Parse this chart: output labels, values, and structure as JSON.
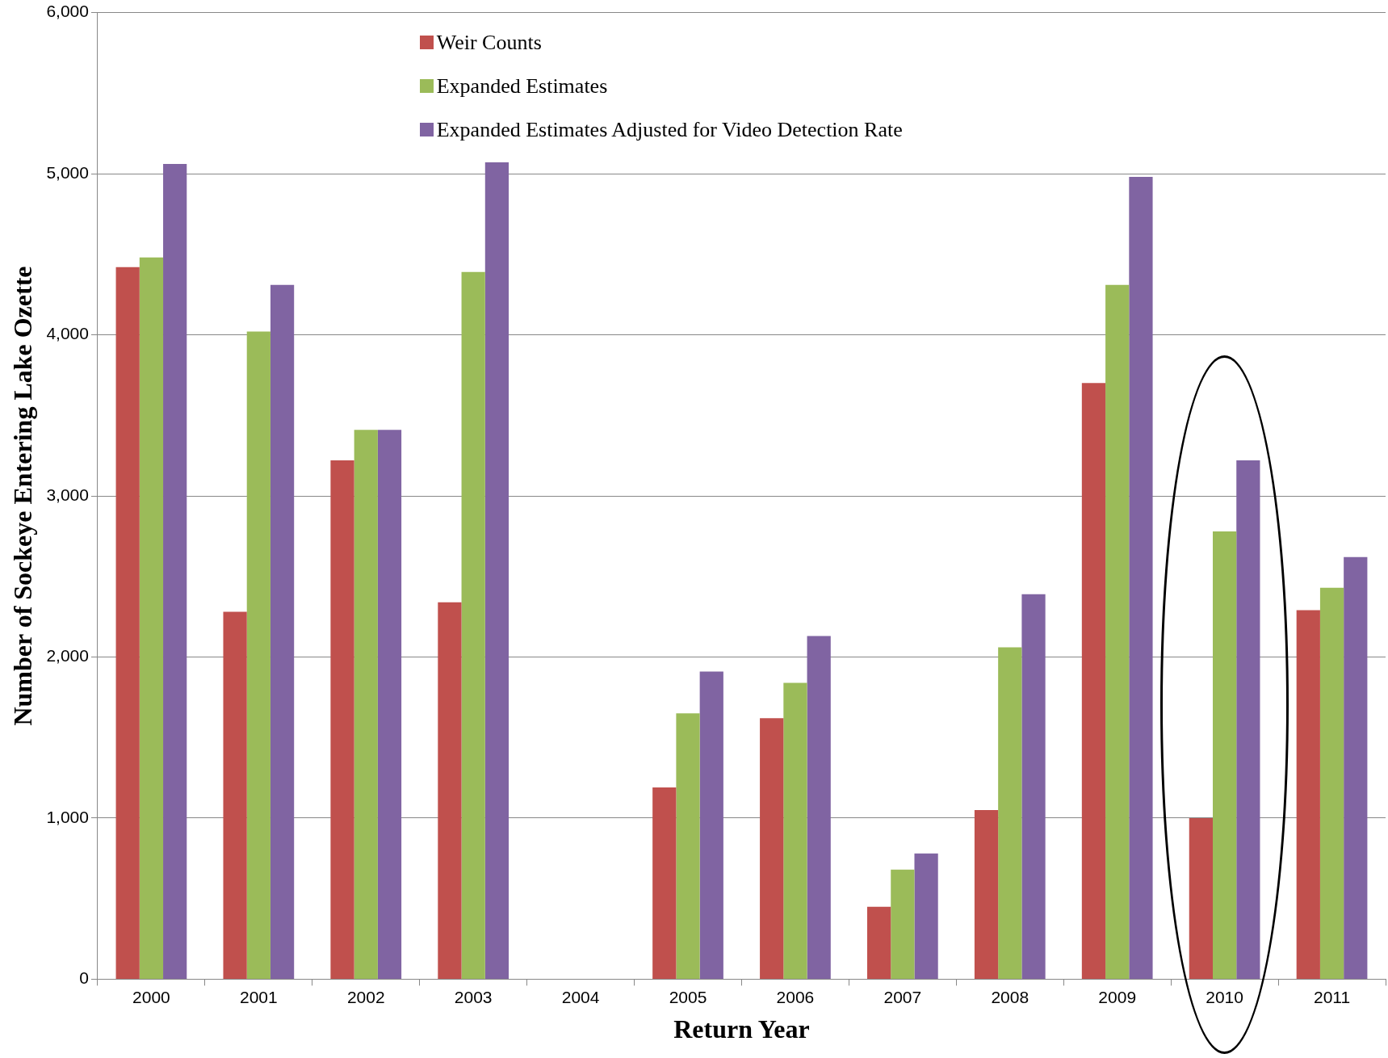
{
  "chart_data": {
    "type": "bar",
    "xlabel": "Return Year",
    "ylabel": "Number of Sockeye Entering Lake Ozette",
    "categories": [
      "2000",
      "2001",
      "2002",
      "2003",
      "2004",
      "2005",
      "2006",
      "2007",
      "2008",
      "2009",
      "2010",
      "2011"
    ],
    "series": [
      {
        "name": "Weir Counts",
        "color": "#c0504d",
        "values": [
          4420,
          2280,
          3220,
          2340,
          null,
          1190,
          1620,
          450,
          1050,
          3700,
          1000,
          2290
        ]
      },
      {
        "name": "Expanded Estimates",
        "color": "#9bbb59",
        "values": [
          4480,
          4020,
          3410,
          4390,
          null,
          1650,
          1840,
          680,
          2060,
          4310,
          2780,
          2430
        ]
      },
      {
        "name": "Expanded Estimates Adjusted for Video Detection Rate",
        "color": "#8064a2",
        "values": [
          5060,
          4310,
          3410,
          5070,
          null,
          1910,
          2130,
          780,
          2390,
          4980,
          3220,
          2620
        ]
      }
    ],
    "ylim": [
      0,
      6000
    ],
    "yticks": [
      {
        "value": 0,
        "label": "0"
      },
      {
        "value": 1000,
        "label": "1,000"
      },
      {
        "value": 2000,
        "label": "2,000"
      },
      {
        "value": 3000,
        "label": "3,000"
      },
      {
        "value": 4000,
        "label": "4,000"
      },
      {
        "value": 5000,
        "label": "5,000"
      },
      {
        "value": 6000,
        "label": "6,000"
      }
    ],
    "grid": "y",
    "legend": "top"
  }
}
